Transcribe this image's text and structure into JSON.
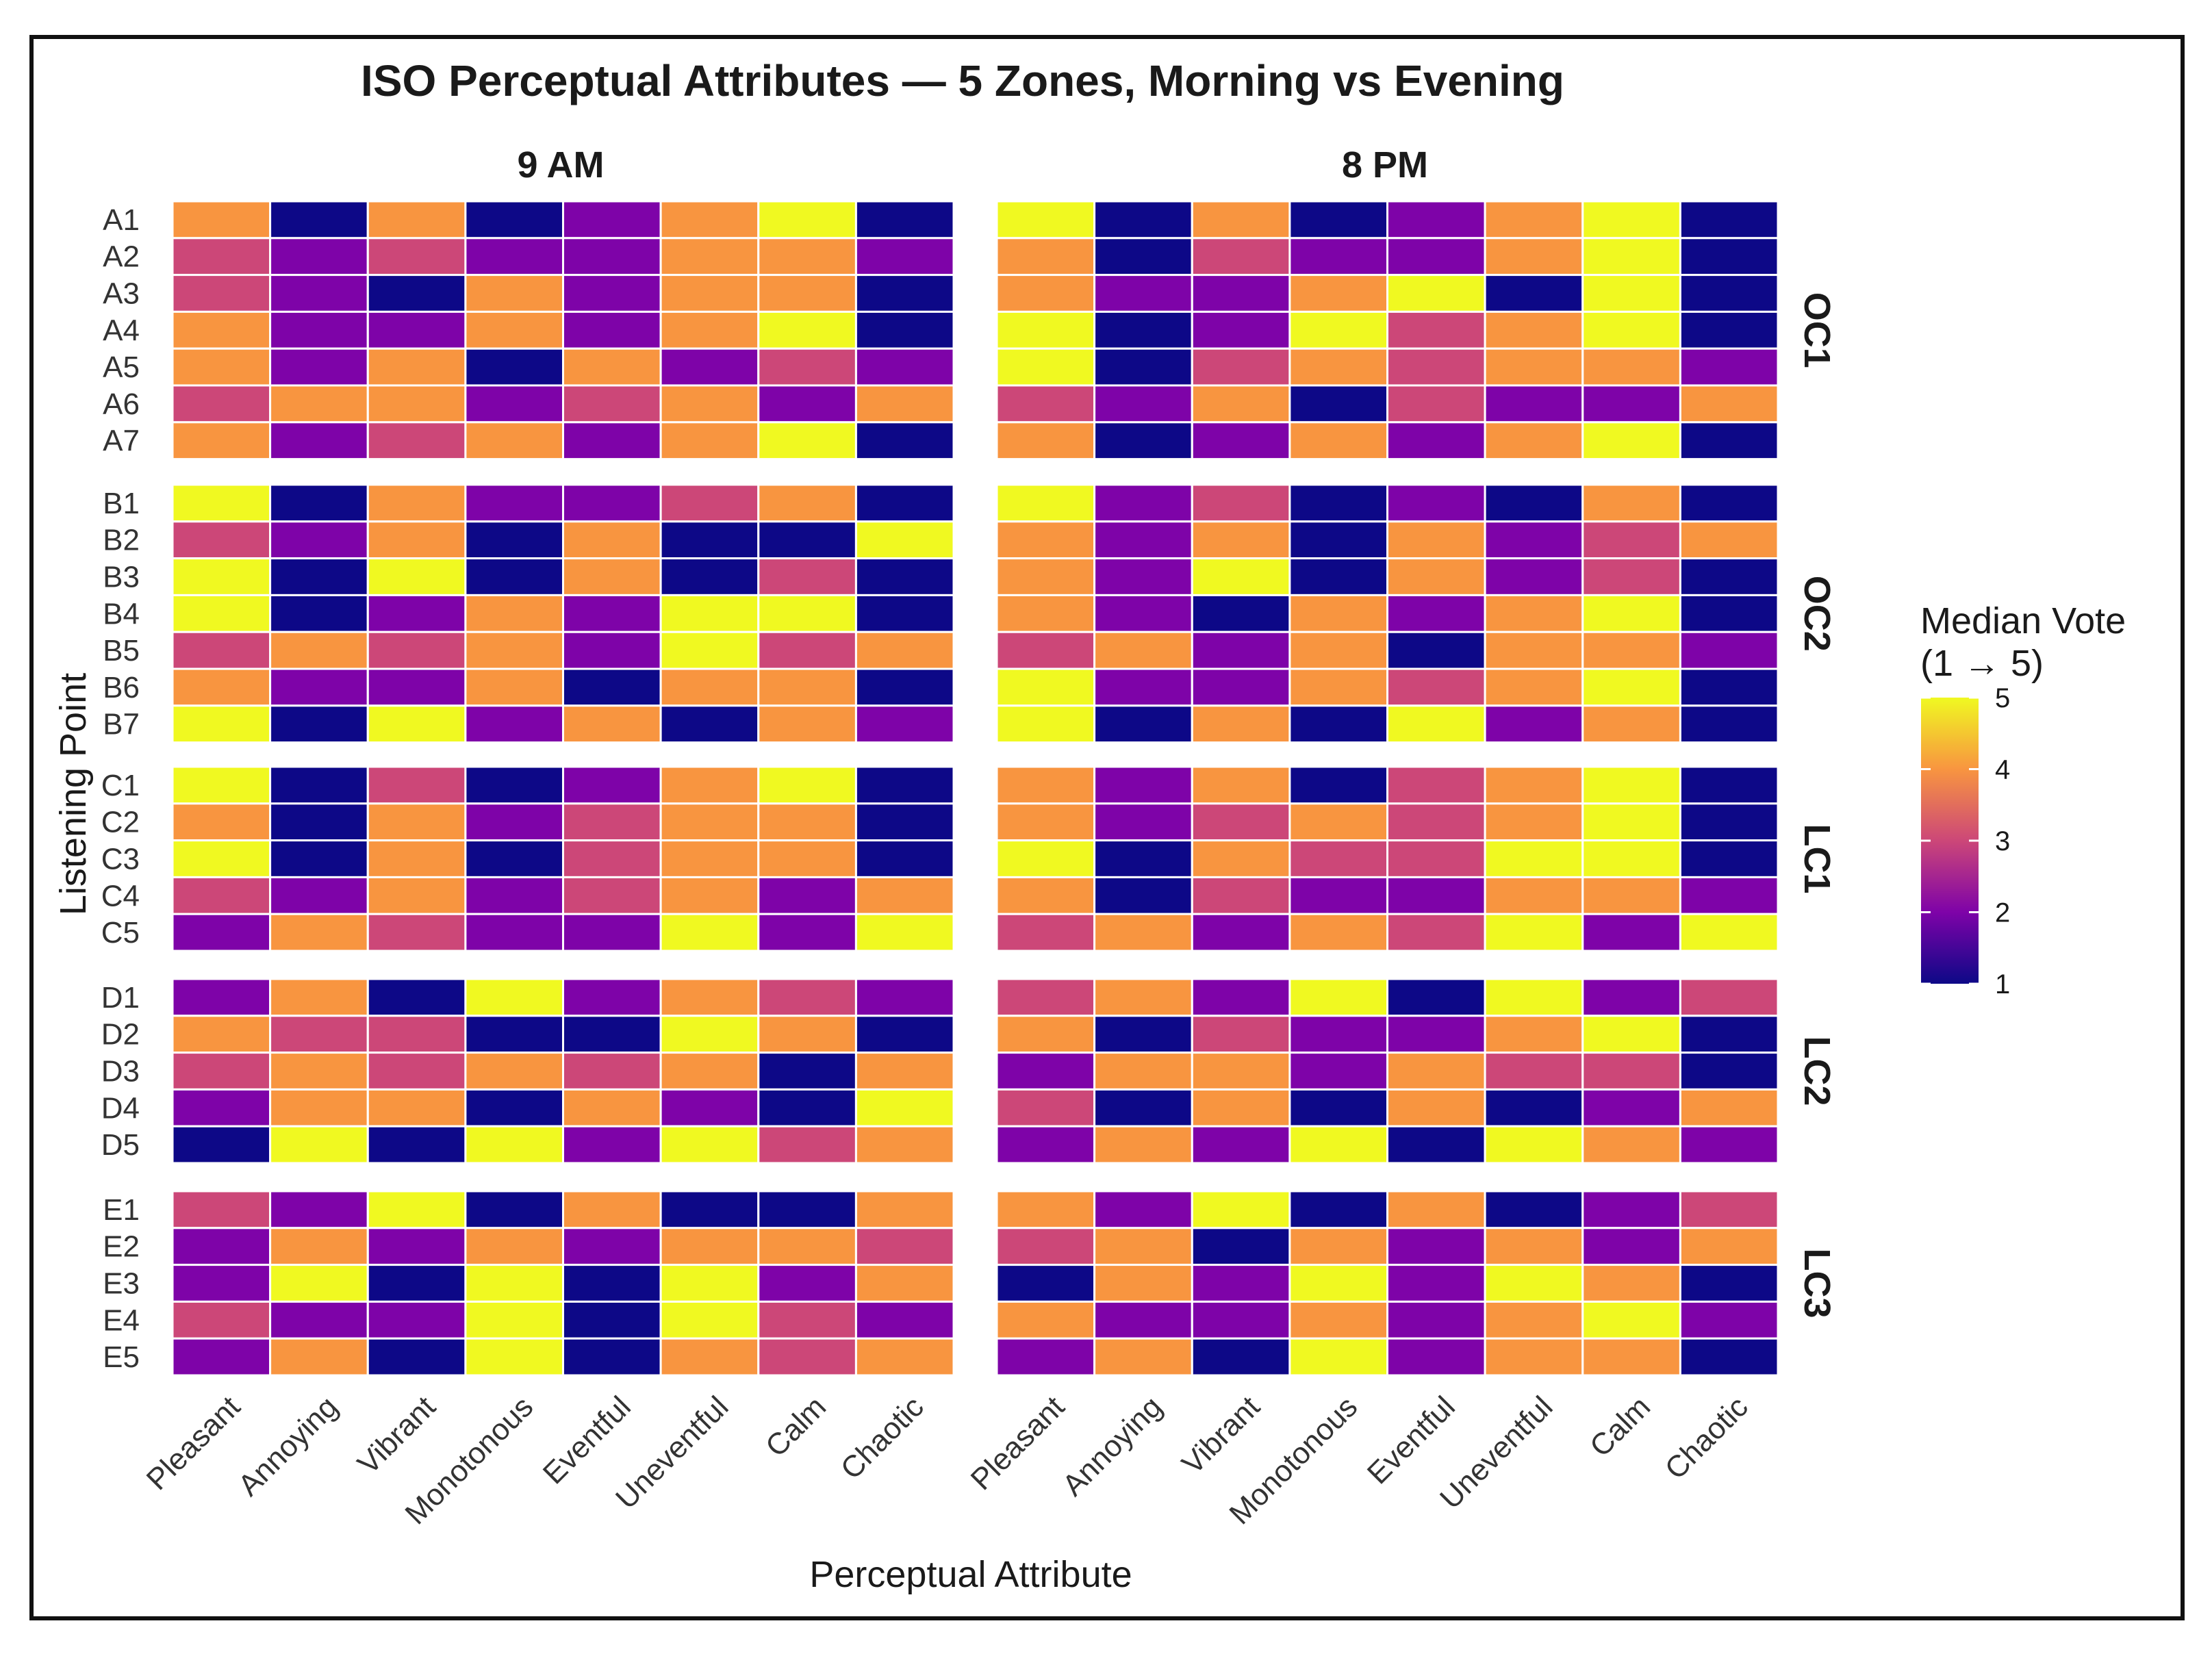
{
  "chart_data": {
    "type": "heatmap",
    "title": "ISO Perceptual Attributes — 5 Zones, Morning vs Evening",
    "xlabel": "Perceptual Attribute",
    "ylabel": "Listening Point",
    "columns": [
      "9 AM",
      "8 PM"
    ],
    "attributes": [
      "Pleasant",
      "Annoying",
      "Vibrant",
      "Monotonous",
      "Eventful",
      "Uneventful",
      "Calm",
      "Chaotic"
    ],
    "legend": {
      "title_line1": "Median Vote",
      "title_line2": "(1 → 5)",
      "min": 1,
      "max": 5,
      "ticks": [
        "1",
        "2",
        "3",
        "4",
        "5"
      ],
      "position": "right"
    },
    "colors": {
      "1": "#0d0887",
      "2": "#7e03a8",
      "3": "#cc4778",
      "4": "#f89540",
      "5": "#f0f921"
    },
    "zones": [
      {
        "name": "OC1",
        "points": [
          "A1",
          "A2",
          "A3",
          "A4",
          "A5",
          "A6",
          "A7"
        ],
        "values": {
          "9 AM": [
            [
              4,
              1,
              4,
              1,
              2,
              4,
              5,
              1
            ],
            [
              3,
              2,
              3,
              2,
              2,
              4,
              4,
              2
            ],
            [
              3,
              2,
              1,
              4,
              2,
              4,
              4,
              1
            ],
            [
              4,
              2,
              2,
              4,
              2,
              4,
              5,
              1
            ],
            [
              4,
              2,
              4,
              1,
              4,
              2,
              3,
              2
            ],
            [
              3,
              4,
              4,
              2,
              3,
              4,
              2,
              4
            ],
            [
              4,
              2,
              3,
              4,
              2,
              4,
              5,
              1
            ]
          ],
          "8 PM": [
            [
              5,
              1,
              4,
              1,
              2,
              4,
              5,
              1
            ],
            [
              4,
              1,
              3,
              2,
              2,
              4,
              5,
              1
            ],
            [
              4,
              2,
              2,
              4,
              5,
              1,
              5,
              1
            ],
            [
              5,
              1,
              2,
              5,
              3,
              4,
              5,
              1
            ],
            [
              5,
              1,
              3,
              4,
              3,
              4,
              4,
              2
            ],
            [
              3,
              2,
              4,
              1,
              3,
              2,
              2,
              4
            ],
            [
              4,
              1,
              2,
              4,
              2,
              4,
              5,
              1
            ]
          ]
        }
      },
      {
        "name": "OC2",
        "points": [
          "B1",
          "B2",
          "B3",
          "B4",
          "B5",
          "B6",
          "B7"
        ],
        "values": {
          "9 AM": [
            [
              5,
              1,
              4,
              2,
              2,
              3,
              4,
              1
            ],
            [
              3,
              2,
              4,
              1,
              4,
              1,
              1,
              5
            ],
            [
              5,
              1,
              5,
              1,
              4,
              1,
              3,
              1
            ],
            [
              5,
              1,
              2,
              4,
              2,
              5,
              5,
              1
            ],
            [
              3,
              4,
              3,
              4,
              2,
              5,
              3,
              4
            ],
            [
              4,
              2,
              2,
              4,
              1,
              4,
              4,
              1
            ],
            [
              5,
              1,
              5,
              2,
              4,
              1,
              4,
              2
            ]
          ],
          "8 PM": [
            [
              5,
              2,
              3,
              1,
              2,
              1,
              4,
              1
            ],
            [
              4,
              2,
              4,
              1,
              4,
              2,
              3,
              4
            ],
            [
              4,
              2,
              5,
              1,
              4,
              2,
              3,
              1
            ],
            [
              4,
              2,
              1,
              4,
              2,
              4,
              5,
              1
            ],
            [
              3,
              4,
              2,
              4,
              1,
              4,
              4,
              2
            ],
            [
              5,
              2,
              2,
              4,
              3,
              4,
              5,
              1
            ],
            [
              5,
              1,
              4,
              1,
              5,
              2,
              4,
              1
            ]
          ]
        }
      },
      {
        "name": "LC1",
        "points": [
          "C1",
          "C2",
          "C3",
          "C4",
          "C5"
        ],
        "values": {
          "9 AM": [
            [
              5,
              1,
              3,
              1,
              2,
              4,
              5,
              1
            ],
            [
              4,
              1,
              4,
              2,
              3,
              4,
              4,
              1
            ],
            [
              5,
              1,
              4,
              1,
              3,
              4,
              4,
              1
            ],
            [
              3,
              2,
              4,
              2,
              3,
              4,
              2,
              4
            ],
            [
              2,
              4,
              3,
              2,
              2,
              5,
              2,
              5
            ]
          ],
          "8 PM": [
            [
              4,
              2,
              4,
              1,
              3,
              4,
              5,
              1
            ],
            [
              4,
              2,
              3,
              4,
              3,
              4,
              5,
              1
            ],
            [
              5,
              1,
              4,
              3,
              3,
              5,
              5,
              1
            ],
            [
              4,
              1,
              3,
              2,
              2,
              4,
              4,
              2
            ],
            [
              3,
              4,
              2,
              4,
              3,
              5,
              2,
              5
            ]
          ]
        }
      },
      {
        "name": "LC2",
        "points": [
          "D1",
          "D2",
          "D3",
          "D4",
          "D5"
        ],
        "values": {
          "9 AM": [
            [
              2,
              4,
              1,
              5,
              2,
              4,
              3,
              2
            ],
            [
              4,
              3,
              3,
              1,
              1,
              5,
              4,
              1
            ],
            [
              3,
              4,
              3,
              4,
              3,
              4,
              1,
              4
            ],
            [
              2,
              4,
              4,
              1,
              4,
              2,
              1,
              5
            ],
            [
              1,
              5,
              1,
              5,
              2,
              5,
              3,
              4
            ]
          ],
          "8 PM": [
            [
              3,
              4,
              2,
              5,
              1,
              5,
              2,
              3
            ],
            [
              4,
              1,
              3,
              2,
              2,
              4,
              5,
              1
            ],
            [
              2,
              4,
              4,
              2,
              4,
              3,
              3,
              1
            ],
            [
              3,
              1,
              4,
              1,
              4,
              1,
              2,
              4
            ],
            [
              2,
              4,
              2,
              5,
              1,
              5,
              4,
              2
            ]
          ]
        }
      },
      {
        "name": "LC3",
        "points": [
          "E1",
          "E2",
          "E3",
          "E4",
          "E5"
        ],
        "values": {
          "9 AM": [
            [
              3,
              2,
              5,
              1,
              4,
              1,
              1,
              4
            ],
            [
              2,
              4,
              2,
              4,
              2,
              4,
              4,
              3
            ],
            [
              2,
              5,
              1,
              5,
              1,
              5,
              2,
              4
            ],
            [
              3,
              2,
              2,
              5,
              1,
              5,
              3,
              2
            ],
            [
              2,
              4,
              1,
              5,
              1,
              4,
              3,
              4
            ]
          ],
          "8 PM": [
            [
              4,
              2,
              5,
              1,
              4,
              1,
              2,
              3
            ],
            [
              3,
              4,
              1,
              4,
              2,
              4,
              2,
              4
            ],
            [
              1,
              4,
              2,
              5,
              2,
              5,
              4,
              1
            ],
            [
              4,
              2,
              2,
              4,
              2,
              4,
              5,
              2
            ],
            [
              2,
              4,
              1,
              5,
              2,
              4,
              4,
              1
            ]
          ]
        }
      }
    ]
  }
}
